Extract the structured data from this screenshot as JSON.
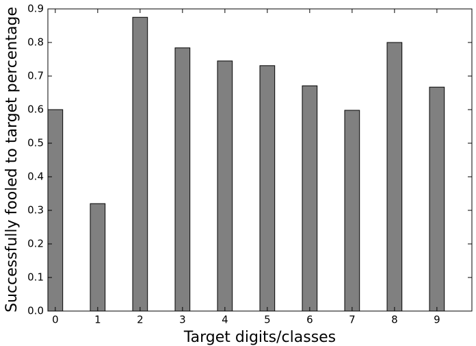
{
  "chart_data": {
    "type": "bar",
    "x_label": "Target digits/classes",
    "y_label": "Successfully fooled to target percentage",
    "x": [
      0,
      1,
      2,
      3,
      4,
      5,
      6,
      7,
      8,
      9
    ],
    "values": [
      0.6,
      0.32,
      0.875,
      0.784,
      0.745,
      0.731,
      0.671,
      0.598,
      0.8,
      0.667
    ],
    "color": "#808080",
    "xlim": [
      -0.175,
      9.825
    ],
    "xticks": [
      0,
      1,
      2,
      3,
      4,
      5,
      6,
      7,
      8,
      9
    ],
    "ylim": [
      0,
      0.9
    ],
    "yticks": [
      {
        "value": 0,
        "label": "0.0"
      },
      0.1,
      0.2,
      0.3,
      0.4,
      0.5,
      0.6,
      0.7,
      0.8,
      0.9
    ]
  }
}
